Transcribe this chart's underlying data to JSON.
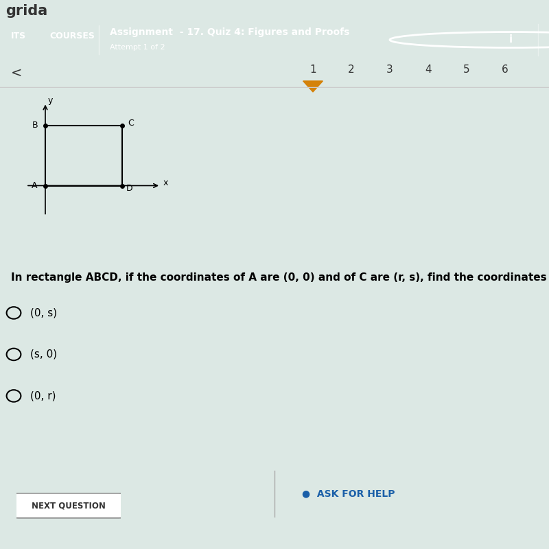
{
  "bg_color": "#dce8e4",
  "header_bg": "#2b6cb0",
  "header_text": "Assignment  - 17. Quiz 4: Figures and Proofs",
  "header_subtext": "Attempt 1 of 2",
  "header_left1": "ITS",
  "header_left2": "COURSES",
  "nav_numbers": [
    "1",
    "2",
    "3",
    "4",
    "5",
    "6"
  ],
  "question_text": "In rectangle ABCD, if the coordinates of A are (0, 0) and of C are (r, s), find the coordinates of B.",
  "options": [
    "(0, s)",
    "(s, 0)",
    "(0, r)"
  ],
  "button_next": "NEXT QUESTION",
  "button_help": "ASK FOR HELP",
  "title_partial": "grida",
  "gold_bar_color": "#c8a800",
  "nav_bg": "#f0f0f0",
  "triangle_color": "#d4820a"
}
